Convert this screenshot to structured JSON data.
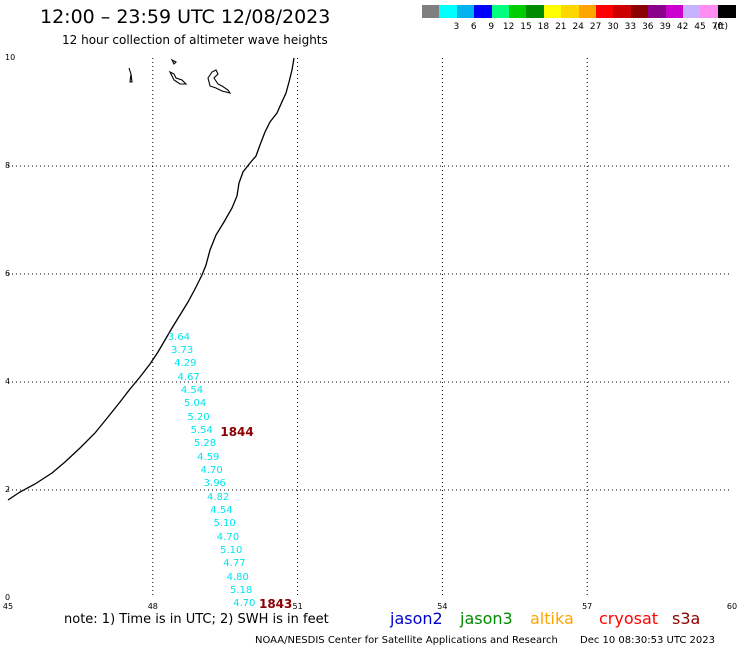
{
  "header": {
    "title": "12:00 – 23:59 UTC 12/08/2023",
    "subtitle": "12 hour collection of altimeter wave heights"
  },
  "legend": {
    "unit": "(ft)",
    "bins": [
      {
        "label": "",
        "color": "#7f7f7f"
      },
      {
        "label": "3",
        "color": "#00ffff"
      },
      {
        "label": "6",
        "color": "#00b2ee"
      },
      {
        "label": "9",
        "color": "#0000ff"
      },
      {
        "label": "12",
        "color": "#00ff7f"
      },
      {
        "label": "15",
        "color": "#00cd00"
      },
      {
        "label": "18",
        "color": "#008b00"
      },
      {
        "label": "21",
        "color": "#ffff00"
      },
      {
        "label": "24",
        "color": "#ffd700"
      },
      {
        "label": "27",
        "color": "#ffa500"
      },
      {
        "label": "30",
        "color": "#ff0000"
      },
      {
        "label": "33",
        "color": "#cd0000"
      },
      {
        "label": "36",
        "color": "#8b0000"
      },
      {
        "label": "39",
        "color": "#8b008b"
      },
      {
        "label": "42",
        "color": "#cc00cc"
      },
      {
        "label": "45",
        "color": "#c6b2ff"
      },
      {
        "label": "70",
        "color": "#ff8cf0"
      },
      {
        "label": "",
        "color": "#000000"
      }
    ]
  },
  "map": {
    "lon_range": [
      45,
      60
    ],
    "lat_range": [
      0,
      10
    ],
    "x_ticks": [
      "45",
      "48",
      "51",
      "54",
      "57",
      "60"
    ],
    "y_ticks": [
      "0",
      "2",
      "4",
      "6",
      "8",
      "10"
    ],
    "observations": [
      {
        "lat": 4.8,
        "value": "3.64"
      },
      {
        "lat": 4.55,
        "value": "3.73"
      },
      {
        "lat": 4.31,
        "value": "4.29"
      },
      {
        "lat": 4.06,
        "value": "4.67"
      },
      {
        "lat": 3.81,
        "value": "4.54"
      },
      {
        "lat": 3.57,
        "value": "5.04"
      },
      {
        "lat": 3.32,
        "value": "5.20"
      },
      {
        "lat": 3.07,
        "value": "5.54"
      },
      {
        "lat": 2.83,
        "value": "5.28"
      },
      {
        "lat": 2.58,
        "value": "4.59"
      },
      {
        "lat": 2.33,
        "value": "4.70"
      },
      {
        "lat": 2.09,
        "value": "3.96"
      },
      {
        "lat": 1.84,
        "value": "4.82"
      },
      {
        "lat": 1.59,
        "value": "4.54"
      },
      {
        "lat": 1.35,
        "value": "5.10"
      },
      {
        "lat": 1.1,
        "value": "4.70"
      },
      {
        "lat": 0.85,
        "value": "5.10"
      },
      {
        "lat": 0.61,
        "value": "4.77"
      },
      {
        "lat": 0.36,
        "value": "4.80"
      },
      {
        "lat": 0.11,
        "value": "5.18"
      },
      {
        "lat": -0.13,
        "value": "4.70"
      }
    ],
    "time_labels": [
      {
        "text": "1844",
        "lon": 49.4,
        "lat": 3.05
      },
      {
        "text": "1843",
        "lon": 50.2,
        "lat": -0.13
      }
    ],
    "observation_color": "#00e5ee"
  },
  "footer": {
    "note": "note:  1) Time is in UTC;  2) SWH is in feet",
    "satellites": [
      {
        "name": "jason2",
        "color": "#0000cd"
      },
      {
        "name": "jason3",
        "color": "#008b00"
      },
      {
        "name": "altika",
        "color": "#ffa500"
      },
      {
        "name": "cryosat",
        "color": "#ff0000"
      },
      {
        "name": "s3a",
        "color": "#8b0000"
      }
    ],
    "credit": "NOAA/NESDIS Center for Satellite Applications and Research",
    "timestamp": "Dec 10 08:30:53 UTC 2023"
  }
}
